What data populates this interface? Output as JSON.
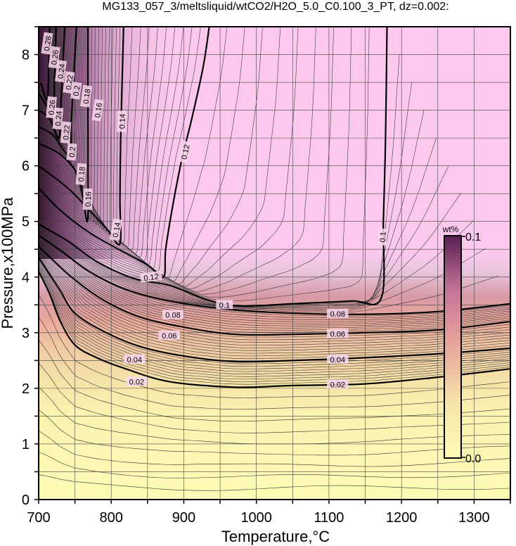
{
  "chart_data": {
    "type": "contour",
    "title": "MG133_057_3/meltsliquid/wtCO2/H2O_5.0_C0.100_3_PT, dz=0.002:",
    "xlabel": "Temperature,°C",
    "ylabel": "Pressure,x100MPa",
    "xlim": [
      700,
      1350
    ],
    "ylim": [
      0,
      8.5
    ],
    "x_ticks": [
      "700",
      "800",
      "900",
      "1000",
      "1100",
      "1200",
      "1300"
    ],
    "y_ticks": [
      "0",
      "1",
      "2",
      "3",
      "4",
      "5",
      "6",
      "7",
      "8"
    ],
    "grid": true,
    "colorbar": {
      "unit": "wt%",
      "min_label": "0.0",
      "max_label": "0.1",
      "range": [
        0.0,
        0.1
      ],
      "colors": [
        "#fdfbb5",
        "#f6e4a8",
        "#e9a79b",
        "#c7769a",
        "#5a1f52"
      ]
    },
    "contour_interval": 0.002,
    "bold_contours": [
      {
        "level": "0.02",
        "points": [
          [
            700,
            4.1
          ],
          [
            715,
            3.7
          ],
          [
            730,
            3.2
          ],
          [
            750,
            2.78
          ],
          [
            780,
            2.55
          ],
          [
            820,
            2.35
          ],
          [
            880,
            2.12
          ],
          [
            970,
            2.02
          ],
          [
            1050,
            2.05
          ],
          [
            1150,
            2.08
          ],
          [
            1250,
            2.2
          ],
          [
            1350,
            2.35
          ]
        ]
      },
      {
        "level": "0.04",
        "points": [
          [
            700,
            4.35
          ],
          [
            715,
            4.05
          ],
          [
            730,
            3.75
          ],
          [
            750,
            3.35
          ],
          [
            790,
            3.02
          ],
          [
            840,
            2.75
          ],
          [
            900,
            2.58
          ],
          [
            970,
            2.48
          ],
          [
            1050,
            2.5
          ],
          [
            1150,
            2.55
          ],
          [
            1250,
            2.62
          ],
          [
            1350,
            2.72
          ]
        ]
      },
      {
        "level": "0.06",
        "points": [
          [
            700,
            4.55
          ],
          [
            720,
            4.3
          ],
          [
            750,
            3.95
          ],
          [
            790,
            3.58
          ],
          [
            840,
            3.28
          ],
          [
            900,
            3.1
          ],
          [
            970,
            2.97
          ],
          [
            1050,
            2.97
          ],
          [
            1150,
            3.0
          ],
          [
            1250,
            3.05
          ],
          [
            1350,
            3.2
          ]
        ]
      },
      {
        "level": "0.08",
        "points": [
          [
            700,
            4.75
          ],
          [
            730,
            4.48
          ],
          [
            770,
            4.1
          ],
          [
            820,
            3.78
          ],
          [
            880,
            3.57
          ],
          [
            960,
            3.42
          ],
          [
            1050,
            3.35
          ],
          [
            1150,
            3.33
          ],
          [
            1250,
            3.38
          ],
          [
            1350,
            3.52
          ]
        ]
      },
      {
        "level": "0.1",
        "points": [
          [
            700,
            4.95
          ],
          [
            740,
            4.65
          ],
          [
            780,
            4.28
          ],
          [
            830,
            3.98
          ],
          [
            880,
            3.85
          ],
          [
            930,
            3.6
          ],
          [
            975,
            3.48
          ],
          [
            1050,
            3.52
          ],
          [
            1130,
            3.57
          ],
          [
            1172,
            3.62
          ],
          [
            1175,
            5.0
          ],
          [
            1178,
            6.5
          ],
          [
            1180,
            8.5
          ]
        ]
      },
      {
        "level": "0.12",
        "points": [
          [
            700,
            5.6
          ],
          [
            730,
            5.2
          ],
          [
            770,
            4.8
          ],
          [
            810,
            4.5
          ],
          [
            850,
            4.22
          ],
          [
            872,
            4.0
          ],
          [
            875,
            4.5
          ],
          [
            885,
            5.3
          ],
          [
            897,
            6.1
          ],
          [
            912,
            6.9
          ],
          [
            927,
            7.8
          ],
          [
            935,
            8.5
          ]
        ]
      },
      {
        "level": "0.14",
        "points": [
          [
            700,
            6.0
          ],
          [
            740,
            5.6
          ],
          [
            770,
            5.2
          ],
          [
            795,
            4.85
          ],
          [
            812,
            4.6
          ],
          [
            812,
            5.4
          ],
          [
            813,
            6.5
          ],
          [
            815,
            7.5
          ],
          [
            817,
            8.5
          ]
        ]
      },
      {
        "level": "0.16",
        "points": [
          [
            700,
            6.4
          ],
          [
            730,
            6.2
          ],
          [
            755,
            5.8
          ],
          [
            767,
            5.0
          ],
          [
            768,
            6.0
          ],
          [
            768,
            7.0
          ],
          [
            768,
            8.5
          ]
        ]
      },
      {
        "level": "0.18",
        "points": [
          [
            700,
            6.7
          ],
          [
            720,
            6.55
          ],
          [
            742,
            6.2
          ],
          [
            745,
            6.8
          ],
          [
            748,
            7.5
          ],
          [
            752,
            8.5
          ]
        ]
      },
      {
        "level": "0.2",
        "points": [
          [
            700,
            7.0
          ],
          [
            715,
            6.85
          ],
          [
            728,
            6.5
          ],
          [
            731,
            7.2
          ],
          [
            734,
            8.0
          ],
          [
            736,
            8.5
          ]
        ]
      },
      {
        "level": "0.22",
        "points": [
          [
            700,
            7.3
          ],
          [
            710,
            7.1
          ],
          [
            720,
            6.9
          ],
          [
            722,
            7.6
          ],
          [
            724,
            8.5
          ]
        ]
      },
      {
        "level": "0.24",
        "points": [
          [
            703,
            7.5
          ],
          [
            712,
            7.2
          ],
          [
            714,
            8.0
          ],
          [
            715,
            8.5
          ]
        ]
      }
    ],
    "contour_labels": [
      {
        "text": "0.02",
        "x": 835,
        "y": 2.12,
        "angle": 0
      },
      {
        "text": "0.02",
        "x": 1112,
        "y": 2.07,
        "angle": 0
      },
      {
        "text": "0.04",
        "x": 832,
        "y": 2.52,
        "angle": 0
      },
      {
        "text": "0.04",
        "x": 1112,
        "y": 2.52,
        "angle": 0
      },
      {
        "text": "0.06",
        "x": 880,
        "y": 2.95,
        "angle": 0
      },
      {
        "text": "0.06",
        "x": 1112,
        "y": 2.98,
        "angle": 0
      },
      {
        "text": "0.08",
        "x": 885,
        "y": 3.32,
        "angle": 0
      },
      {
        "text": "0.08",
        "x": 1112,
        "y": 3.34,
        "angle": 0
      },
      {
        "text": "0.1",
        "x": 956,
        "y": 3.5,
        "angle": 0
      },
      {
        "text": "0.1",
        "x": 1174,
        "y": 4.72,
        "angle": -87
      },
      {
        "text": "0.12",
        "x": 855,
        "y": 4.0,
        "angle": -8
      },
      {
        "text": "0.12",
        "x": 902,
        "y": 6.25,
        "angle": -78
      },
      {
        "text": "0.14",
        "x": 807,
        "y": 4.85,
        "angle": -80
      },
      {
        "text": "0.14",
        "x": 815,
        "y": 6.8,
        "angle": -88
      },
      {
        "text": "0.16",
        "x": 768,
        "y": 5.4,
        "angle": -88
      },
      {
        "text": "0.16",
        "x": 782,
        "y": 7.0,
        "angle": -82
      },
      {
        "text": "0.18",
        "x": 759,
        "y": 5.85,
        "angle": -85
      },
      {
        "text": "0.18",
        "x": 766,
        "y": 7.25,
        "angle": -82
      },
      {
        "text": "0.2",
        "x": 746,
        "y": 6.25,
        "angle": -85
      },
      {
        "text": "0.2",
        "x": 752,
        "y": 7.35,
        "angle": -82
      },
      {
        "text": "0.22",
        "x": 738,
        "y": 6.6,
        "angle": -85
      },
      {
        "text": "0.22",
        "x": 742,
        "y": 7.5,
        "angle": -82
      },
      {
        "text": "0.24",
        "x": 727,
        "y": 6.85,
        "angle": -85
      },
      {
        "text": "0.24",
        "x": 731,
        "y": 7.7,
        "angle": -82
      },
      {
        "text": "0.26",
        "x": 718,
        "y": 7.05,
        "angle": -85
      },
      {
        "text": "0.26",
        "x": 722,
        "y": 7.95,
        "angle": -82
      },
      {
        "text": "0.28",
        "x": 712,
        "y": 8.2,
        "angle": -82
      }
    ]
  }
}
